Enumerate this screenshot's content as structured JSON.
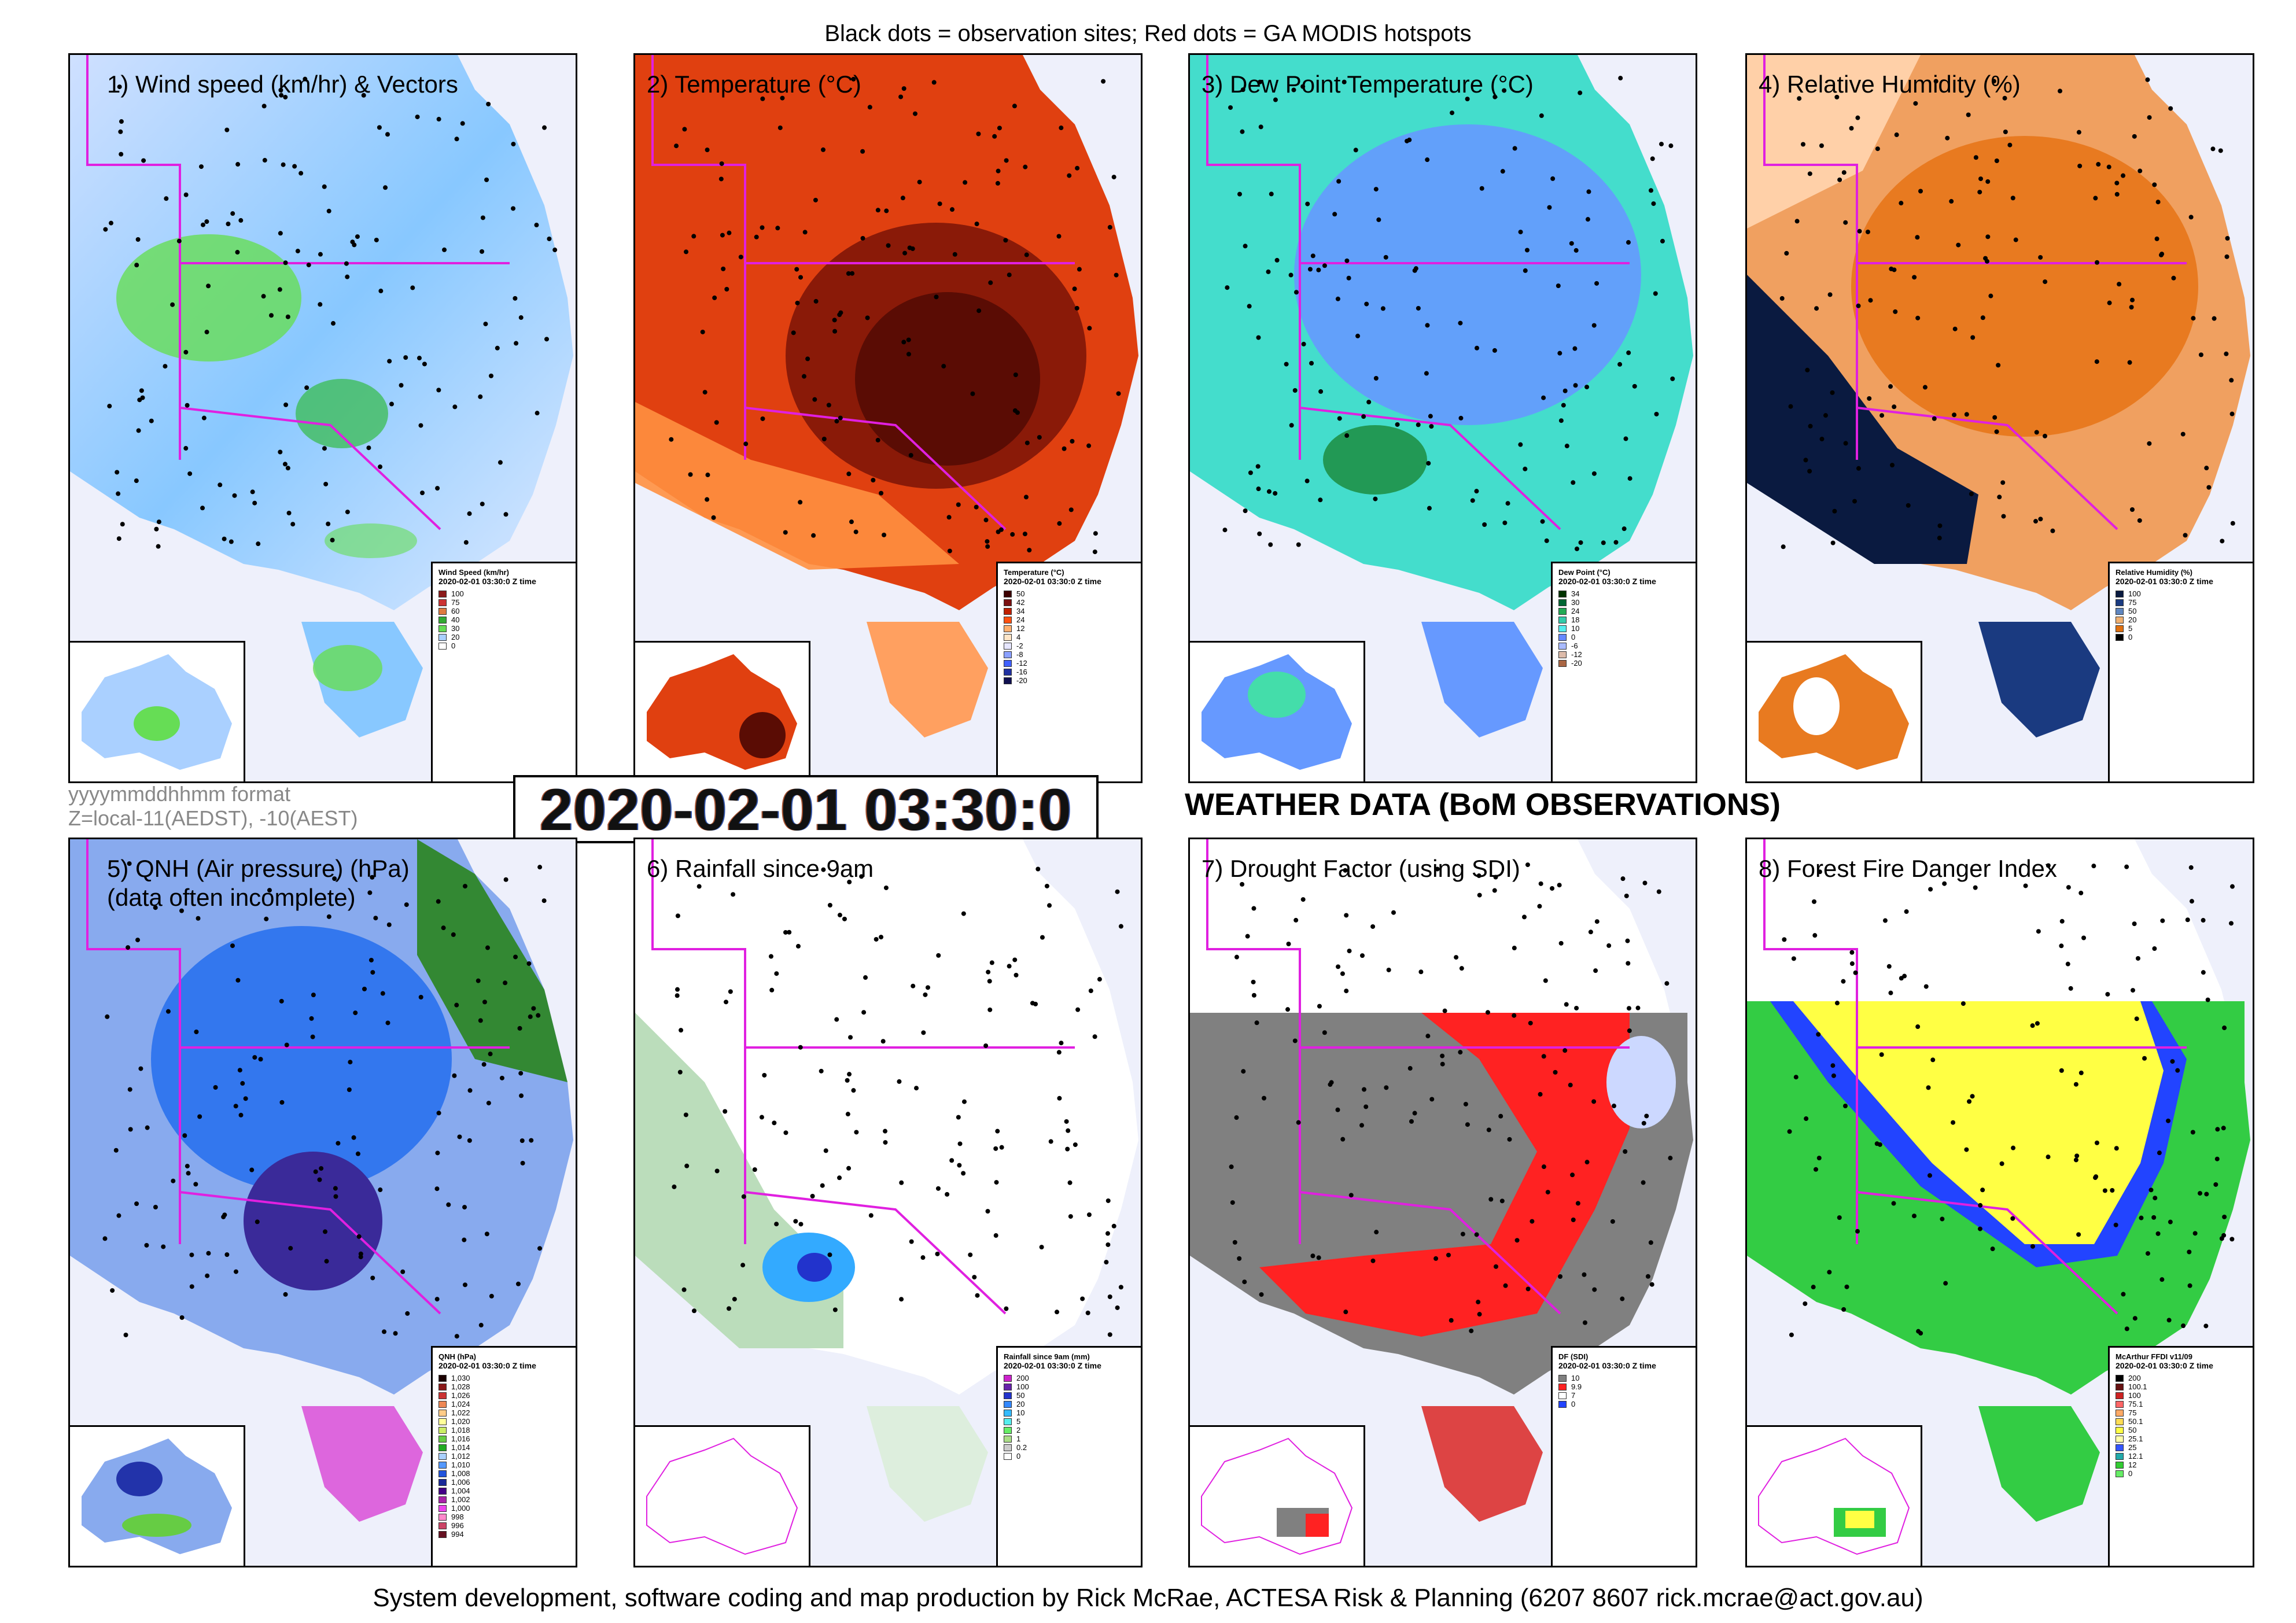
{
  "header": {
    "caption": "Black dots = observation sites; Red dots = GA MODIS hotspots"
  },
  "panels": [
    {
      "id": "p1",
      "title": "1) Wind speed (km/hr) & Vectors",
      "legend": {
        "title": "Wind Speed (km/hr)",
        "subtitle": "2020-02-01 03:30:0 Z time",
        "items": [
          {
            "label": "100",
            "color": "#8b1a1a"
          },
          {
            "label": "75",
            "color": "#cc3333"
          },
          {
            "label": "60",
            "color": "#e07a40"
          },
          {
            "label": "40",
            "color": "#33aa33"
          },
          {
            "label": "30",
            "color": "#66dd55"
          },
          {
            "label": "20",
            "color": "#aad0ff"
          },
          {
            "label": "0",
            "color": "#ffffff"
          }
        ]
      }
    },
    {
      "id": "p2",
      "title": "2) Temperature (°C)",
      "legend": {
        "title": "Temperature (°C)",
        "subtitle": "2020-02-01 03:30:0 Z time",
        "items": [
          {
            "label": "50",
            "color": "#3d0000"
          },
          {
            "label": "42",
            "color": "#7a1010"
          },
          {
            "label": "34",
            "color": "#c02000"
          },
          {
            "label": "24",
            "color": "#ff5010"
          },
          {
            "label": "12",
            "color": "#ffb070"
          },
          {
            "label": "4",
            "color": "#ffe6c8"
          },
          {
            "label": "-2",
            "color": "#e6e6ff"
          },
          {
            "label": "-8",
            "color": "#8aa0ff"
          },
          {
            "label": "-12",
            "color": "#4060ff"
          },
          {
            "label": "-16",
            "color": "#2030a0"
          },
          {
            "label": "-20",
            "color": "#101050"
          }
        ]
      }
    },
    {
      "id": "p3",
      "title": "3) Dew Point Temperature (°C)",
      "legend": {
        "title": "Dew Point (°C)",
        "subtitle": "2020-02-01 03:30:0 Z time",
        "items": [
          {
            "label": "34",
            "color": "#003300"
          },
          {
            "label": "30",
            "color": "#006633"
          },
          {
            "label": "24",
            "color": "#22aa55"
          },
          {
            "label": "18",
            "color": "#33ccaa"
          },
          {
            "label": "10",
            "color": "#55eeee"
          },
          {
            "label": "0",
            "color": "#6688ff"
          },
          {
            "label": "-6",
            "color": "#aabbff"
          },
          {
            "label": "-12",
            "color": "#ddbbaa"
          },
          {
            "label": "-20",
            "color": "#aa6644"
          }
        ]
      }
    },
    {
      "id": "p4",
      "title": "4) Relative Humidity (%)",
      "legend": {
        "title": "Relative Humidity (%)",
        "subtitle": "2020-02-01 03:30:0 Z time",
        "items": [
          {
            "label": "100",
            "color": "#0a1a40"
          },
          {
            "label": "75",
            "color": "#1a3a80"
          },
          {
            "label": "50",
            "color": "#5f86c0"
          },
          {
            "label": "20",
            "color": "#f0b070"
          },
          {
            "label": "5",
            "color": "#e07010"
          },
          {
            "label": "0",
            "color": "#000000"
          }
        ]
      }
    },
    {
      "id": "p5",
      "title": "5) QNH (Air pressure) (hPa)\n(data often incomplete)",
      "legend": {
        "title": "QNH (hPa)",
        "subtitle": "2020-02-01 03:30:0 Z time",
        "items": [
          {
            "label": "1,030",
            "color": "#1a0000"
          },
          {
            "label": "1,028",
            "color": "#8b1a1a"
          },
          {
            "label": "1,026",
            "color": "#cc3333"
          },
          {
            "label": "1,024",
            "color": "#ee8855"
          },
          {
            "label": "1,022",
            "color": "#ffcc88"
          },
          {
            "label": "1,020",
            "color": "#ffff99"
          },
          {
            "label": "1,018",
            "color": "#ccee66"
          },
          {
            "label": "1,016",
            "color": "#66cc44"
          },
          {
            "label": "1,014",
            "color": "#22aa22"
          },
          {
            "label": "1,012",
            "color": "#aad0ff"
          },
          {
            "label": "1,010",
            "color": "#5599ff"
          },
          {
            "label": "1,008",
            "color": "#2255dd"
          },
          {
            "label": "1,006",
            "color": "#1a2a99"
          },
          {
            "label": "1,004",
            "color": "#440088"
          },
          {
            "label": "1,002",
            "color": "#aa22aa"
          },
          {
            "label": "1,000",
            "color": "#ee44ee"
          },
          {
            "label": "998",
            "color": "#ff88cc"
          },
          {
            "label": "996",
            "color": "#cc4466"
          },
          {
            "label": "994",
            "color": "#661122"
          }
        ]
      }
    },
    {
      "id": "p6",
      "title": "6) Rainfall since 9am",
      "legend": {
        "title": "Rainfall since 9am (mm)",
        "subtitle": "2020-02-01 03:30:0 Z time",
        "items": [
          {
            "label": "200",
            "color": "#cc22cc"
          },
          {
            "label": "100",
            "color": "#6622aa"
          },
          {
            "label": "50",
            "color": "#2233cc"
          },
          {
            "label": "20",
            "color": "#3388ff"
          },
          {
            "label": "10",
            "color": "#33bbff"
          },
          {
            "label": "5",
            "color": "#55eeee"
          },
          {
            "label": "2",
            "color": "#66ee66"
          },
          {
            "label": "1",
            "color": "#aadd88"
          },
          {
            "label": "0.2",
            "color": "#cccccc"
          },
          {
            "label": "0",
            "color": "#ffffff"
          }
        ]
      }
    },
    {
      "id": "p7",
      "title": "7) Drought Factor (using SDI)",
      "legend": {
        "title": "DF (SDI)",
        "subtitle": "2020-02-01 03:30:0 Z time",
        "items": [
          {
            "label": "10",
            "color": "#808080"
          },
          {
            "label": "9.9",
            "color": "#ff2222"
          },
          {
            "label": "7",
            "color": "#ffffff"
          },
          {
            "label": "0",
            "color": "#2244ff"
          }
        ]
      }
    },
    {
      "id": "p8",
      "title": "8) Forest Fire Danger Index",
      "legend": {
        "title": "McArthur FFDI v11/09",
        "subtitle": "2020-02-01 03:30:0 Z time",
        "items": [
          {
            "label": "200",
            "color": "#000000"
          },
          {
            "label": "100.1",
            "color": "#661111"
          },
          {
            "label": "100",
            "color": "#cc2222"
          },
          {
            "label": "75.1",
            "color": "#ff6666"
          },
          {
            "label": "75",
            "color": "#ffaa66"
          },
          {
            "label": "50.1",
            "color": "#ffdd55"
          },
          {
            "label": "50",
            "color": "#ffff44"
          },
          {
            "label": "25.1",
            "color": "#ffffaa"
          },
          {
            "label": "25",
            "color": "#3355ff"
          },
          {
            "label": "12.1",
            "color": "#22aaaa"
          },
          {
            "label": "12",
            "color": "#33cc33"
          },
          {
            "label": "0",
            "color": "#66ee66"
          }
        ]
      }
    }
  ],
  "format_note": {
    "line1": "yyyymmddhhmm format",
    "line2": "Z=local-11(AEDST), -10(AEST)"
  },
  "timestamp": "2020-02-01 03:30:0",
  "main_title": "WEATHER DATA (BoM OBSERVATIONS)",
  "footer": "System development, software coding and map production by Rick McRae, ACTESA Risk & Planning (6207 8607 rick.mcrae@act.gov.au)",
  "colors": {
    "border_magenta": "#e020e0",
    "water": "#eef0fb",
    "text_gray": "#888888"
  }
}
